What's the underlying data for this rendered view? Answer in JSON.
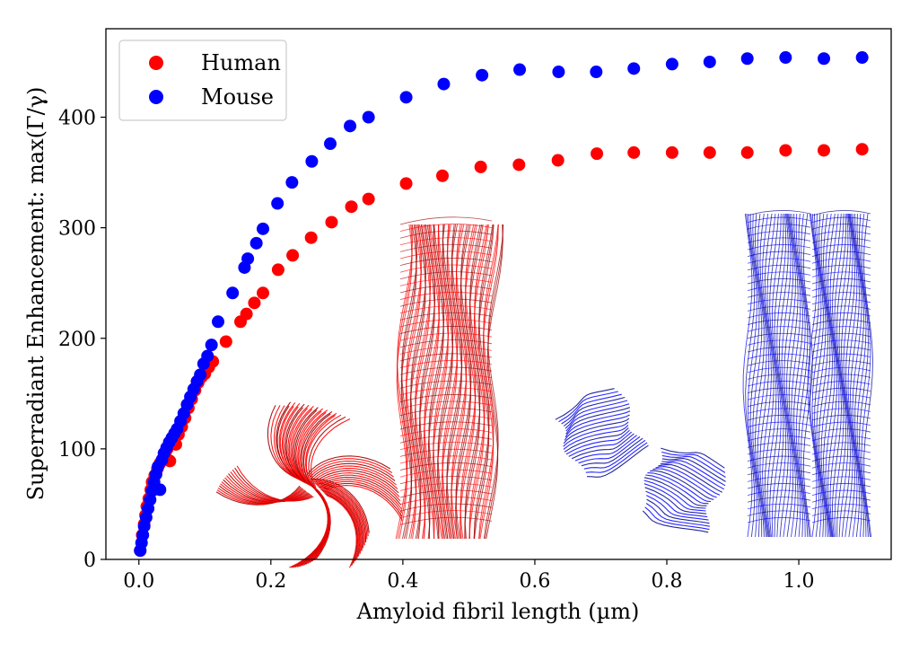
{
  "chart_data": {
    "type": "scatter",
    "xlabel": "Amyloid fibril length (µm)",
    "ylabel": "Superradiant Enhancement: max(Γ/γ)",
    "xlim": [
      -0.05,
      1.14
    ],
    "ylim": [
      0,
      480
    ],
    "x_ticks": [
      "0.0",
      "0.2",
      "0.4",
      "0.6",
      "0.8",
      "1.0"
    ],
    "x_tick_values": [
      0.0,
      0.2,
      0.4,
      0.6,
      0.8,
      1.0
    ],
    "y_ticks": [
      "0",
      "100",
      "200",
      "300",
      "400"
    ],
    "y_tick_values": [
      0,
      100,
      200,
      300,
      400
    ],
    "grid": false,
    "legend_position": "top-left",
    "series": [
      {
        "name": "Human",
        "color": "#ff0000",
        "points": [
          [
            0.002,
            8
          ],
          [
            0.005,
            22
          ],
          [
            0.008,
            32
          ],
          [
            0.01,
            40
          ],
          [
            0.012,
            48
          ],
          [
            0.015,
            55
          ],
          [
            0.018,
            63
          ],
          [
            0.02,
            70
          ],
          [
            0.024,
            76
          ],
          [
            0.028,
            82
          ],
          [
            0.032,
            87
          ],
          [
            0.036,
            91
          ],
          [
            0.04,
            96
          ],
          [
            0.043,
            100
          ],
          [
            0.047,
            89
          ],
          [
            0.052,
            108
          ],
          [
            0.056,
            104
          ],
          [
            0.06,
            113
          ],
          [
            0.065,
            120
          ],
          [
            0.07,
            128
          ],
          [
            0.075,
            137
          ],
          [
            0.08,
            145
          ],
          [
            0.085,
            153
          ],
          [
            0.09,
            160
          ],
          [
            0.095,
            165
          ],
          [
            0.1,
            168
          ],
          [
            0.106,
            174
          ],
          [
            0.112,
            179
          ],
          [
            0.132,
            197
          ],
          [
            0.154,
            215
          ],
          [
            0.163,
            222
          ],
          [
            0.175,
            232
          ],
          [
            0.188,
            241
          ],
          [
            0.211,
            262
          ],
          [
            0.233,
            275
          ],
          [
            0.261,
            291
          ],
          [
            0.292,
            305
          ],
          [
            0.322,
            319
          ],
          [
            0.348,
            326
          ],
          [
            0.405,
            340
          ],
          [
            0.46,
            347
          ],
          [
            0.518,
            355
          ],
          [
            0.576,
            357
          ],
          [
            0.635,
            361
          ],
          [
            0.694,
            367
          ],
          [
            0.75,
            368
          ],
          [
            0.808,
            368
          ],
          [
            0.865,
            368
          ],
          [
            0.922,
            368
          ],
          [
            0.98,
            370
          ],
          [
            1.038,
            370
          ],
          [
            1.096,
            371
          ]
        ]
      },
      {
        "name": "Mouse",
        "color": "#0000ff",
        "points": [
          [
            0.002,
            8
          ],
          [
            0.004,
            15
          ],
          [
            0.006,
            22
          ],
          [
            0.008,
            30
          ],
          [
            0.011,
            38
          ],
          [
            0.014,
            46
          ],
          [
            0.017,
            54
          ],
          [
            0.02,
            62
          ],
          [
            0.023,
            70
          ],
          [
            0.026,
            77
          ],
          [
            0.029,
            84
          ],
          [
            0.032,
            63
          ],
          [
            0.035,
            90
          ],
          [
            0.038,
            96
          ],
          [
            0.042,
            101
          ],
          [
            0.046,
            106
          ],
          [
            0.05,
            110
          ],
          [
            0.054,
            114
          ],
          [
            0.058,
            118
          ],
          [
            0.063,
            125
          ],
          [
            0.068,
            132
          ],
          [
            0.073,
            140
          ],
          [
            0.078,
            147
          ],
          [
            0.083,
            154
          ],
          [
            0.088,
            161
          ],
          [
            0.093,
            167
          ],
          [
            0.098,
            177
          ],
          [
            0.104,
            184
          ],
          [
            0.11,
            194
          ],
          [
            0.12,
            215
          ],
          [
            0.142,
            241
          ],
          [
            0.16,
            264
          ],
          [
            0.165,
            272
          ],
          [
            0.178,
            286
          ],
          [
            0.188,
            299
          ],
          [
            0.21,
            322
          ],
          [
            0.232,
            341
          ],
          [
            0.262,
            360
          ],
          [
            0.29,
            376
          ],
          [
            0.32,
            392
          ],
          [
            0.348,
            400
          ],
          [
            0.405,
            418
          ],
          [
            0.462,
            430
          ],
          [
            0.52,
            438
          ],
          [
            0.577,
            443
          ],
          [
            0.636,
            441
          ],
          [
            0.693,
            441
          ],
          [
            0.75,
            444
          ],
          [
            0.808,
            448
          ],
          [
            0.865,
            450
          ],
          [
            0.922,
            453
          ],
          [
            0.98,
            454
          ],
          [
            1.038,
            453
          ],
          [
            1.096,
            454
          ]
        ]
      }
    ],
    "insets": [
      {
        "name": "human-fibril-top-view",
        "color": "#ff0000",
        "view": "cross-section"
      },
      {
        "name": "human-fibril-side-view",
        "color": "#ff0000",
        "view": "side"
      },
      {
        "name": "mouse-fibril-top-view",
        "color": "#0000ff",
        "view": "cross-section"
      },
      {
        "name": "mouse-fibril-side-view",
        "color": "#0000ff",
        "view": "side"
      }
    ]
  }
}
